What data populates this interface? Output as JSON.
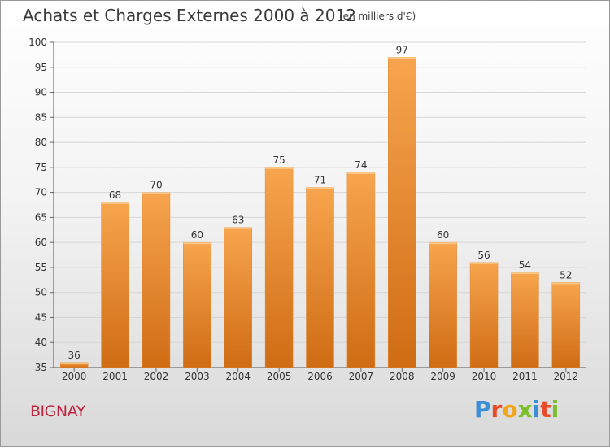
{
  "header": {
    "title": "Achats et Charges Externes 2000 à 2012",
    "unit": "(en milliers d'€)"
  },
  "footer": {
    "place": "BIGNAY",
    "logo": "Proxiti",
    "logo_colors": [
      "#3a8fd6",
      "#e94b2a",
      "#f2a51a",
      "#7bbf2a",
      "#3a8fd6",
      "#e94b2a",
      "#7bbf2a"
    ]
  },
  "chart_data": {
    "type": "bar",
    "categories": [
      "2000",
      "2001",
      "2002",
      "2003",
      "2004",
      "2005",
      "2006",
      "2007",
      "2008",
      "2009",
      "2010",
      "2011",
      "2012"
    ],
    "values": [
      36,
      68,
      70,
      60,
      63,
      75,
      71,
      74,
      97,
      60,
      56,
      54,
      52
    ],
    "ylim": [
      35,
      100
    ],
    "yticks": [
      35,
      40,
      45,
      50,
      55,
      60,
      65,
      70,
      75,
      80,
      85,
      90,
      95,
      100
    ],
    "grid": true,
    "bar_color_top": "#f7a54e",
    "bar_color_bottom": "#cf6c14",
    "title": "Achats et Charges Externes 2000 à 2012"
  }
}
